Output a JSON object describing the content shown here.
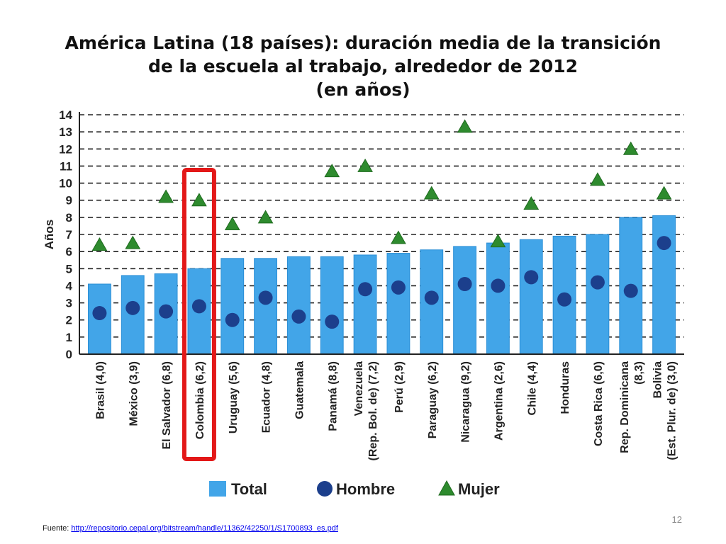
{
  "title_lines": [
    "América Latina (18 países): duración media de la transición",
    "de la escuela al trabajo, alrededor de 2012",
    "(en años)"
  ],
  "chart_data": {
    "type": "bar",
    "ylabel": "Años",
    "ylim": [
      0,
      14
    ],
    "yticks": [
      0,
      1,
      2,
      3,
      4,
      5,
      6,
      7,
      8,
      9,
      10,
      11,
      12,
      13,
      14
    ],
    "grid": true,
    "categories": [
      [
        "Brasil (4,0)"
      ],
      [
        "México (3,9)"
      ],
      [
        "El Salvador (6,8)"
      ],
      [
        "Colombia (6,2)"
      ],
      [
        "Uruguay (5,6)"
      ],
      [
        "Ecuador (4,8)"
      ],
      [
        "Guatemala"
      ],
      [
        "Panamá (8,8)"
      ],
      [
        "Venezuela",
        "(Rep. Bol. de) (7,2)"
      ],
      [
        "Perú (2,9)"
      ],
      [
        "Paraguay (6,2)"
      ],
      [
        "Nicaragua (9,2)"
      ],
      [
        "Argentina (2,6)"
      ],
      [
        "Chile (4,4)"
      ],
      [
        "Honduras"
      ],
      [
        "Costa Rica (6,0)"
      ],
      [
        "Rep. Dominicana",
        "(8,3)"
      ],
      [
        "Bolivia",
        "(Est. Plur. de) (3,0)"
      ]
    ],
    "series": [
      {
        "name": "Total",
        "marker": "bar",
        "values": [
          4.1,
          4.6,
          4.7,
          5.0,
          5.6,
          5.6,
          5.7,
          5.7,
          5.8,
          5.9,
          6.1,
          6.3,
          6.5,
          6.7,
          6.9,
          7.0,
          8.0,
          8.1
        ]
      },
      {
        "name": "Hombre",
        "marker": "circle",
        "values": [
          2.4,
          2.7,
          2.5,
          2.8,
          2.0,
          3.3,
          2.2,
          1.9,
          3.8,
          3.9,
          3.3,
          4.1,
          4.0,
          4.5,
          3.2,
          4.2,
          3.7,
          6.5
        ]
      },
      {
        "name": "Mujer",
        "marker": "triangle",
        "values": [
          6.4,
          6.5,
          9.2,
          9.0,
          7.6,
          8.0,
          null,
          10.7,
          11.0,
          6.8,
          9.4,
          13.3,
          6.6,
          8.8,
          null,
          10.2,
          12.0,
          9.4
        ]
      }
    ],
    "highlight_category": "Colombia (6,2)",
    "legend_position": "bottom"
  },
  "colors": {
    "bar": "#42a5e8",
    "circle": "#1c3f8c",
    "triangle": "#2e8b2e",
    "highlight": "#e31818",
    "grid": "#222222"
  },
  "footer": {
    "label": "Fuente:",
    "link": "http://repositorio.cepal.org/bitstream/handle/11362/42250/1/S1700893_es.pdf"
  },
  "page_number": "12"
}
